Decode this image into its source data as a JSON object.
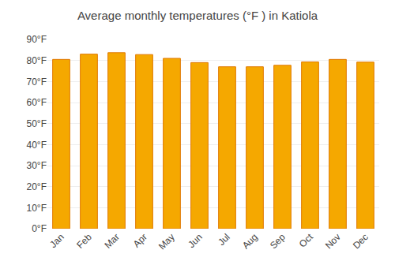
{
  "chart_data": {
    "type": "bar",
    "title": "Average monthly temperatures (°F ) in Katiola",
    "categories": [
      "Jan",
      "Feb",
      "Mar",
      "Apr",
      "May",
      "Jun",
      "Jul",
      "Aug",
      "Sep",
      "Oct",
      "Nov",
      "Dec"
    ],
    "values": [
      80.5,
      83.0,
      83.7,
      82.8,
      81.0,
      79.0,
      77.0,
      77.0,
      77.7,
      79.3,
      80.5,
      79.2
    ],
    "color": "#F5A800",
    "ylim": [
      0,
      90
    ],
    "yticks": [
      {
        "value": 0,
        "label": "0°F"
      },
      {
        "value": 10,
        "label": "10°F"
      },
      {
        "value": 20,
        "label": "20°F"
      },
      {
        "value": 30,
        "label": "30°F"
      },
      {
        "value": 40,
        "label": "40°F"
      },
      {
        "value": 50,
        "label": "50°F"
      },
      {
        "value": 60,
        "label": "60°F"
      },
      {
        "value": 70,
        "label": "70°F"
      },
      {
        "value": 80,
        "label": "80°F"
      },
      {
        "value": 90,
        "label": "90°F"
      }
    ],
    "grid": true
  }
}
